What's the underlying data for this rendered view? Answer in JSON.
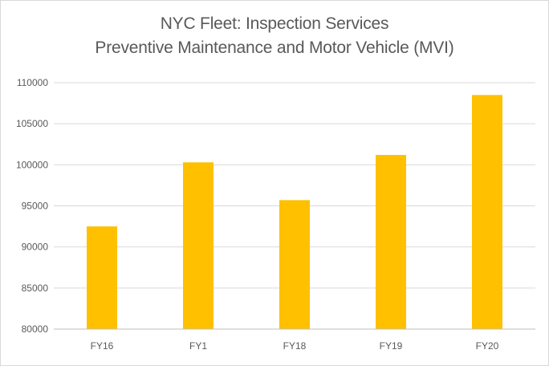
{
  "chart_data": {
    "type": "bar",
    "title": "NYC Fleet: Inspection Services",
    "subtitle": "Preventive Maintenance and Motor Vehicle (MVI)",
    "categories": [
      "FY16",
      "FY1",
      "FY18",
      "FY19",
      "FY20"
    ],
    "values": [
      92500,
      100300,
      95700,
      101200,
      108500
    ],
    "ylim": [
      80000,
      110000
    ],
    "yticks": [
      80000,
      85000,
      90000,
      95000,
      100000,
      105000,
      110000
    ],
    "grid": true,
    "legend": "none",
    "bar_color": "#FFC000",
    "grid_color": "#D9D9D9",
    "axis_color": "#BFBFBF"
  }
}
